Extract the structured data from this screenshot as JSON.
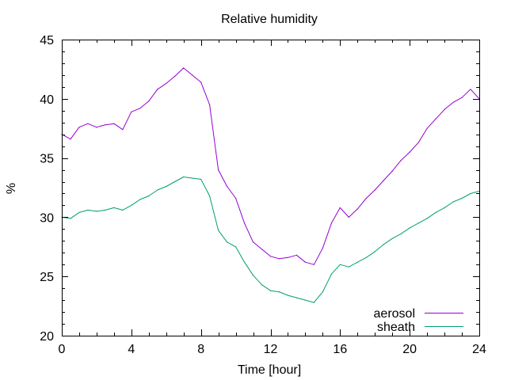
{
  "chart_data": {
    "type": "line",
    "title": "Relative humidity",
    "xlabel": "Time [hour]",
    "ylabel": "%",
    "xlim": [
      0,
      24
    ],
    "ylim": [
      20,
      45
    ],
    "x_ticks": [
      0,
      4,
      8,
      12,
      16,
      20,
      24
    ],
    "y_ticks": [
      20,
      25,
      30,
      35,
      40,
      45
    ],
    "x_tick_labels": [
      "0",
      "4",
      "8",
      "12",
      "16",
      "20",
      "24"
    ],
    "y_tick_labels": [
      "20",
      "25",
      "30",
      "35",
      "40",
      "45"
    ],
    "grid": false,
    "legend_position": "bottom-right",
    "x": [
      0,
      0.5,
      1,
      1.5,
      2,
      2.5,
      3,
      3.5,
      4,
      4.5,
      5,
      5.5,
      6,
      6.5,
      7,
      7.5,
      8,
      8.5,
      9,
      9.5,
      10,
      10.5,
      11,
      11.5,
      12,
      12.5,
      13,
      13.5,
      14,
      14.5,
      15,
      15.5,
      16,
      16.5,
      17,
      17.5,
      18,
      18.5,
      19,
      19.5,
      20,
      20.5,
      21,
      21.5,
      22,
      22.5,
      23,
      23.5,
      24
    ],
    "series": [
      {
        "name": "aerosol",
        "color": "#9400d3",
        "values": [
          37.0,
          36.6,
          37.6,
          37.9,
          37.6,
          37.8,
          37.9,
          37.4,
          38.9,
          39.2,
          39.8,
          40.8,
          41.3,
          41.9,
          42.6,
          42.0,
          41.4,
          39.5,
          34.0,
          32.6,
          31.6,
          29.5,
          27.9,
          27.3,
          26.7,
          26.5,
          26.6,
          26.8,
          26.2,
          26.0,
          27.4,
          29.5,
          30.8,
          30.0,
          30.7,
          31.6,
          32.3,
          33.1,
          33.9,
          34.8,
          35.5,
          36.3,
          37.5,
          38.3,
          39.1,
          39.7,
          40.1,
          40.8,
          40.0
        ]
      },
      {
        "name": "sheath",
        "color": "#009e73",
        "values": [
          30.0,
          29.9,
          30.4,
          30.6,
          30.5,
          30.6,
          30.8,
          30.6,
          31.0,
          31.5,
          31.8,
          32.3,
          32.6,
          33.0,
          33.4,
          33.3,
          33.2,
          31.8,
          28.9,
          27.9,
          27.5,
          26.2,
          25.1,
          24.3,
          23.8,
          23.7,
          23.4,
          23.2,
          23.0,
          22.8,
          23.7,
          25.2,
          26.0,
          25.8,
          26.2,
          26.6,
          27.1,
          27.7,
          28.2,
          28.6,
          29.1,
          29.5,
          29.9,
          30.4,
          30.8,
          31.3,
          31.6,
          32.0,
          32.2
        ]
      }
    ]
  }
}
